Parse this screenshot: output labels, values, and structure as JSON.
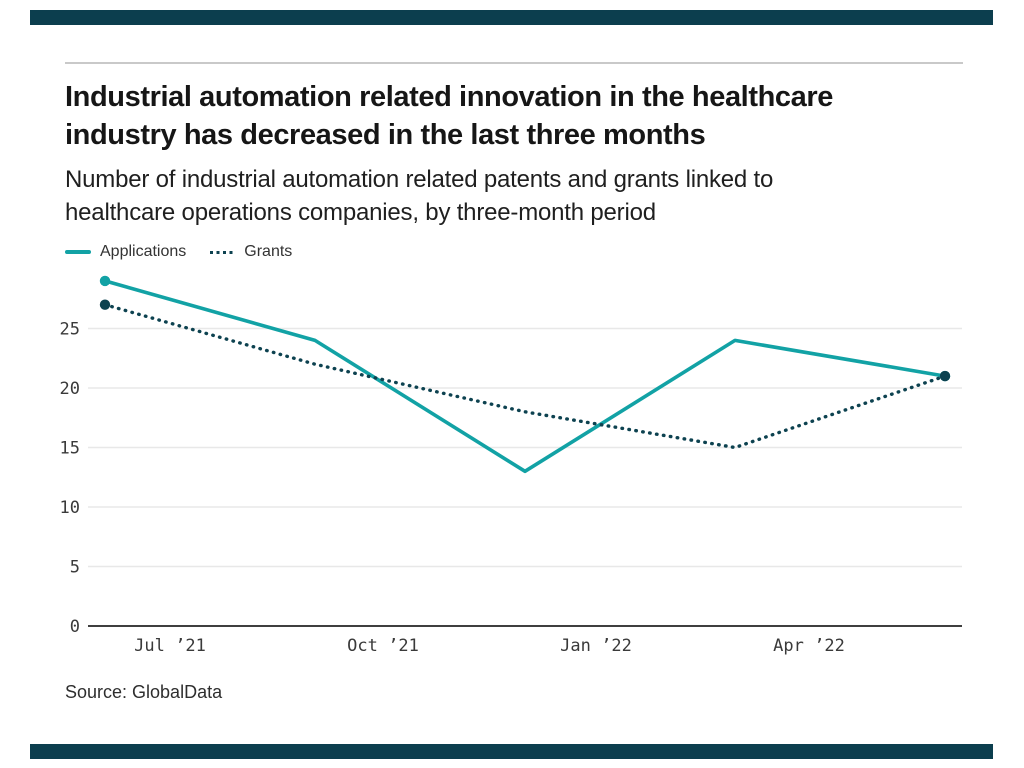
{
  "branding": {
    "top_bar_color": "#0c3e4e",
    "bottom_bar_color": "#0c3e4e"
  },
  "header": {
    "title_lines": [
      "Industrial automation related innovation in the healthcare",
      "industry has decreased in the last three months"
    ],
    "subtitle_lines": [
      "Number of industrial automation related patents and grants linked to",
      "healthcare operations companies, by three-month period"
    ]
  },
  "legend": {
    "items": [
      {
        "label": "Applications",
        "style": "solid"
      },
      {
        "label": "Grants",
        "style": "dotted"
      }
    ]
  },
  "chart_data": {
    "type": "line",
    "x_tick_labels": [
      "Jul ’21",
      "Oct ’21",
      "Jan ’22",
      "Apr ’22"
    ],
    "n_points": 5,
    "series": [
      {
        "name": "Applications",
        "values": [
          29,
          24,
          13,
          24,
          21
        ],
        "color": "#12a2a5",
        "line_style": "solid"
      },
      {
        "name": "Grants",
        "values": [
          27,
          22,
          18,
          15,
          21
        ],
        "color": "#0d4250",
        "line_style": "dotted"
      }
    ],
    "yticks": [
      0,
      5,
      10,
      15,
      20,
      25
    ],
    "ylim": [
      0,
      30
    ],
    "grid": true,
    "legend_position": "top-left",
    "axis_color": "#3f3f3f",
    "gridline_color": "#e8e8e8"
  },
  "footer": {
    "source": "Source: GlobalData"
  }
}
